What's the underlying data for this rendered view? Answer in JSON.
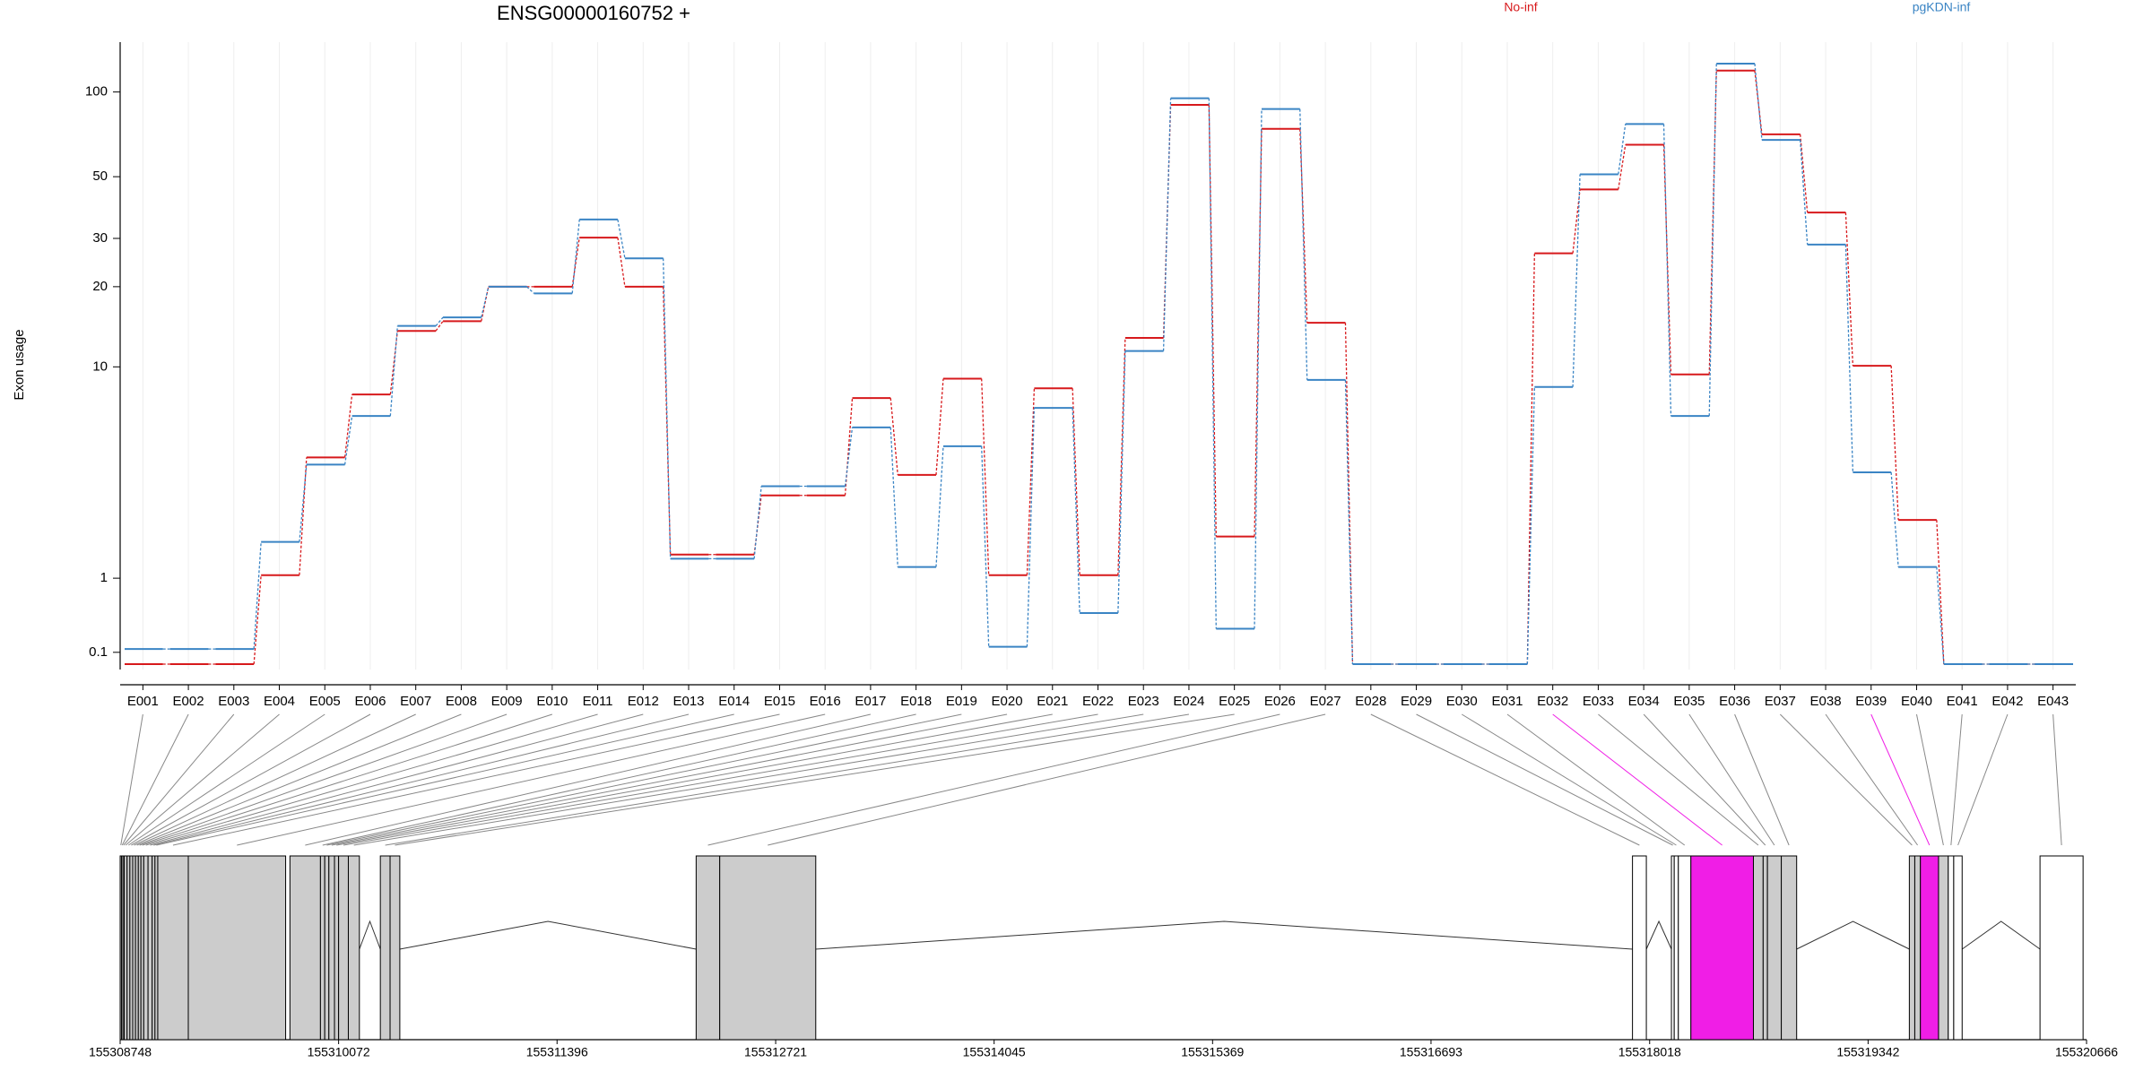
{
  "chart_data": [
    {
      "type": "step",
      "title": "ENSG00000160752 +",
      "ylabel": "Exon usage",
      "yscale": "log1p",
      "grid": true,
      "categories": [
        "E001",
        "E002",
        "E003",
        "E004",
        "E005",
        "E006",
        "E007",
        "E008",
        "E009",
        "E010",
        "E011",
        "E012",
        "E013",
        "E014",
        "E015",
        "E016",
        "E017",
        "E018",
        "E019",
        "E020",
        "E021",
        "E022",
        "E023",
        "E024",
        "E025",
        "E026",
        "E027",
        "E028",
        "E029",
        "E030",
        "E031",
        "E032",
        "E033",
        "E034",
        "E035",
        "E036",
        "E037",
        "E038",
        "E039",
        "E040",
        "E041",
        "E042",
        "E043"
      ],
      "series": [
        {
          "name": "No-inf",
          "color": "#d7191c",
          "values": [
            0,
            0,
            0,
            1.05,
            4.3,
            7.8,
            13.7,
            14.9,
            20,
            20,
            30.2,
            20,
            1.42,
            1.42,
            2.9,
            2.9,
            7.55,
            3.6,
            9,
            1.05,
            8.25,
            1.05,
            12.9,
            90,
            1.8,
            74,
            14.7,
            0,
            0,
            0,
            0,
            26.5,
            45,
            65,
            9.35,
            119,
            70.8,
            37.2,
            10.1,
            2.2,
            0,
            0,
            0
          ]
        },
        {
          "name": "pgKDN-inf",
          "color": "#3a84c4",
          "values": [
            0.13,
            0.13,
            0.13,
            1.68,
            4.0,
            6.4,
            14.3,
            15.4,
            20,
            18.9,
            35.1,
            25.4,
            1.34,
            1.34,
            3.2,
            3.2,
            5.75,
            1.19,
            4.8,
            0.15,
            6.9,
            0.51,
            11.5,
            95,
            0.33,
            87,
            8.9,
            0,
            0,
            0,
            0,
            8.35,
            51,
            77,
            6.4,
            126,
            67.6,
            28.5,
            3.7,
            1.19,
            0,
            0,
            0
          ]
        }
      ],
      "ylim": [
        0,
        150
      ],
      "yticks": [
        0.1,
        1,
        10,
        20,
        30,
        50,
        100
      ]
    },
    {
      "type": "gene-model",
      "highlight": [
        31,
        38
      ],
      "highlight_color": "#f01ee6",
      "starts": [
        155308748,
        155308756,
        155308765,
        155308773,
        155308790,
        155308807,
        155308824,
        155308841,
        155308858,
        155308874,
        155308891,
        155308917,
        155308942,
        155308959,
        155308976,
        155309161,
        155309777,
        155309962,
        155309988,
        155310013,
        155310047,
        155310072,
        155310131,
        155310325,
        155310384,
        155312239,
        155312382,
        155317914,
        155318150,
        155318167,
        155318192,
        155318268,
        155318647,
        155318706,
        155318732,
        155318816,
        155319592,
        155319625,
        155319659,
        155319769,
        155319828,
        155319861,
        155320384
      ],
      "ends": [
        155308756,
        155308765,
        155308773,
        155308790,
        155308807,
        155308824,
        155308841,
        155308858,
        155308874,
        155308891,
        155308917,
        155308942,
        155308959,
        155308976,
        155309161,
        155309751,
        155309962,
        155309988,
        155310013,
        155310047,
        155310072,
        155310131,
        155310198,
        155310384,
        155310443,
        155312382,
        155312964,
        155317998,
        155318167,
        155318192,
        155318268,
        155318647,
        155318706,
        155318732,
        155318816,
        155318909,
        155319625,
        155319659,
        155319769,
        155319828,
        155319861,
        155319912,
        155320645
      ],
      "xlim": [
        155308748,
        155320666
      ],
      "xticks": [
        155308748,
        155310072,
        155311396,
        155312721,
        155314045,
        155315369,
        155316693,
        155318018,
        155319342,
        155320666
      ]
    }
  ]
}
